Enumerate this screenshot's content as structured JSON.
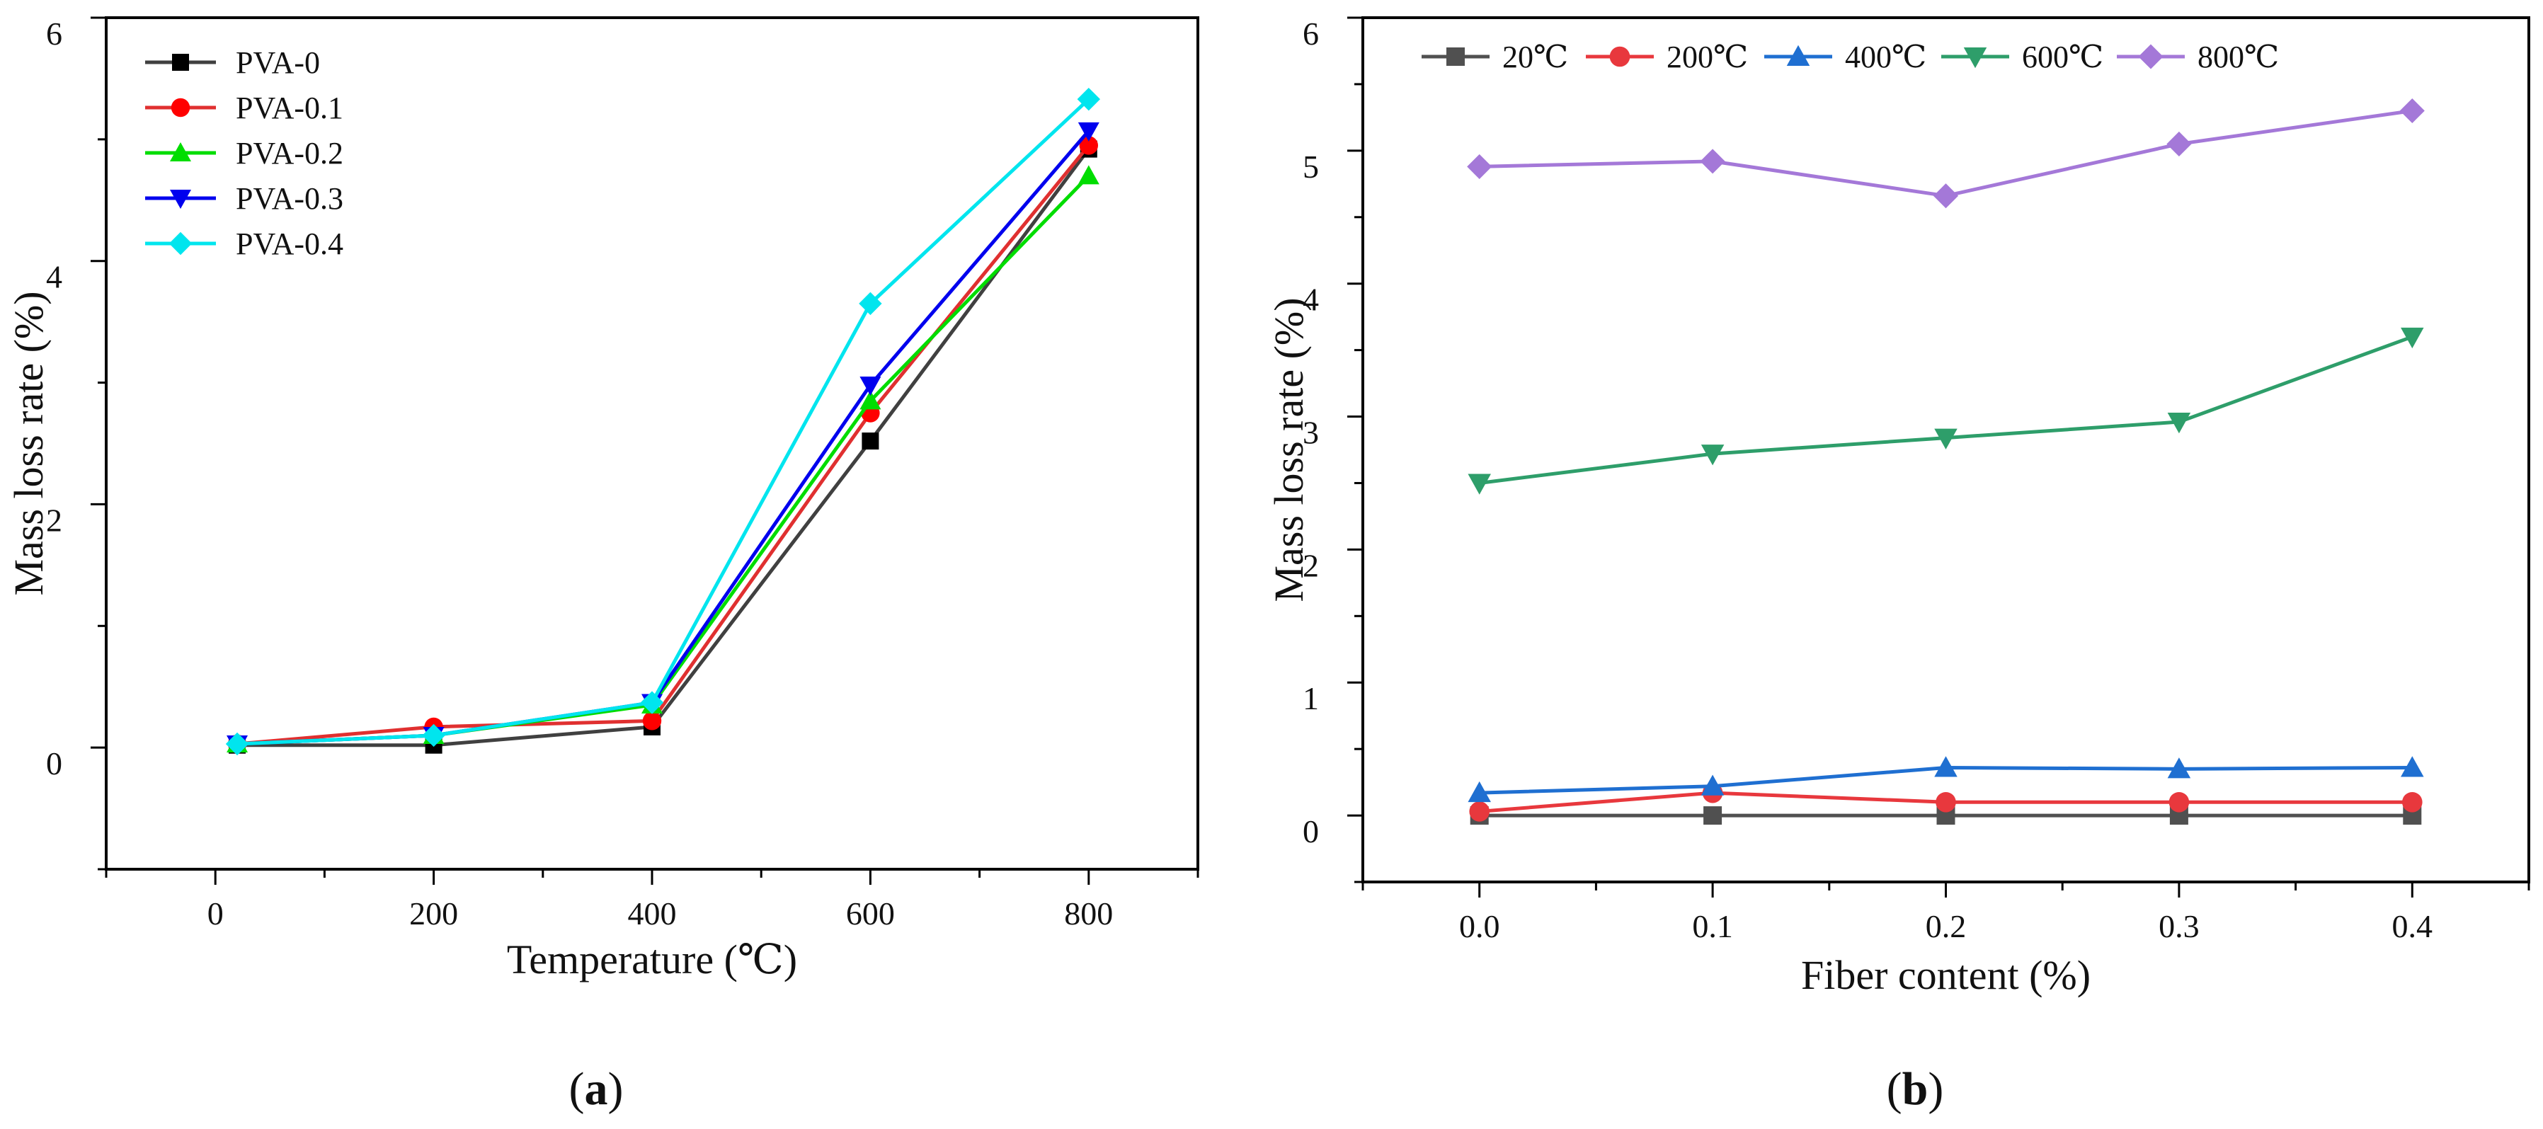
{
  "colors": {
    "background": "#ffffff",
    "axis": "#000000"
  },
  "panels": [
    {
      "label_open": "(",
      "label_letter": "a",
      "label_close": ")"
    },
    {
      "label_open": "(",
      "label_letter": "b",
      "label_close": ")"
    }
  ],
  "chart_data": [
    {
      "type": "line",
      "title": "",
      "xlabel": "Temperature (℃)",
      "ylabel": "Mass loss rate (%)",
      "xlim": [
        -100,
        900
      ],
      "ylim": [
        -1,
        6
      ],
      "x_ticks": [
        0,
        200,
        400,
        600,
        800
      ],
      "x_tick_labels": [
        "0",
        "200",
        "400",
        "600",
        "800"
      ],
      "y_ticks": [
        0,
        2,
        4,
        6
      ],
      "y_tick_labels": [
        "0",
        "2",
        "4",
        "6"
      ],
      "grid": false,
      "legend_position": "top-left",
      "x": [
        20,
        200,
        400,
        600,
        800
      ],
      "series": [
        {
          "name": "PVA-0",
          "marker": "square",
          "color": "#000000",
          "line_color": "#404040",
          "values": [
            0.02,
            0.02,
            0.17,
            2.52,
            4.92
          ]
        },
        {
          "name": "PVA-0.1",
          "marker": "circle",
          "color": "#ff0000",
          "line_color": "#e03030",
          "values": [
            0.03,
            0.17,
            0.22,
            2.75,
            4.95
          ]
        },
        {
          "name": "PVA-0.2",
          "marker": "triangle-up",
          "color": "#00dd00",
          "line_color": "#00dd00",
          "values": [
            0.03,
            0.1,
            0.35,
            2.85,
            4.7
          ]
        },
        {
          "name": "PVA-0.3",
          "marker": "triangle-down",
          "color": "#0000ee",
          "line_color": "#0000ee",
          "values": [
            0.03,
            0.1,
            0.37,
            2.98,
            5.07
          ]
        },
        {
          "name": "PVA-0.4",
          "marker": "diamond",
          "color": "#00e5ee",
          "line_color": "#00e5ee",
          "values": [
            0.03,
            0.1,
            0.37,
            3.65,
            5.33
          ]
        }
      ]
    },
    {
      "type": "line",
      "title": "",
      "xlabel": "Fiber content (%)",
      "ylabel": "Mass loss rate (%)",
      "xlim": [
        -0.05,
        0.45
      ],
      "ylim": [
        -0.5,
        6
      ],
      "x_ticks": [
        0,
        0.1,
        0.2,
        0.3,
        0.4
      ],
      "x_tick_labels": [
        "0.0",
        "0.1",
        "0.2",
        "0.3",
        "0.4"
      ],
      "y_ticks": [
        0,
        1,
        2,
        3,
        4,
        5,
        6
      ],
      "y_tick_labels": [
        "0",
        "1",
        "2",
        "3",
        "4",
        "5",
        "6"
      ],
      "grid": false,
      "legend_position": "top, horizontal",
      "x": [
        0,
        0.1,
        0.2,
        0.3,
        0.4
      ],
      "series": [
        {
          "name": "20℃",
          "marker": "square",
          "color": "#505050",
          "line_color": "#505050",
          "values": [
            0.0,
            0.0,
            0.0,
            0.0,
            0.0
          ]
        },
        {
          "name": "200℃",
          "marker": "circle",
          "color": "#e8383d",
          "line_color": "#e8383d",
          "values": [
            0.03,
            0.17,
            0.1,
            0.1,
            0.1
          ]
        },
        {
          "name": "400℃",
          "marker": "triangle-up",
          "color": "#1f6fd1",
          "line_color": "#1f6fd1",
          "values": [
            0.17,
            0.22,
            0.36,
            0.35,
            0.36
          ]
        },
        {
          "name": "600℃",
          "marker": "triangle-down",
          "color": "#2e9e6a",
          "line_color": "#2e9e6a",
          "values": [
            2.5,
            2.72,
            2.84,
            2.96,
            3.6
          ]
        },
        {
          "name": "800℃",
          "marker": "diamond",
          "color": "#a478d8",
          "line_color": "#a478d8",
          "values": [
            4.88,
            4.92,
            4.66,
            5.05,
            5.3
          ]
        }
      ]
    }
  ]
}
